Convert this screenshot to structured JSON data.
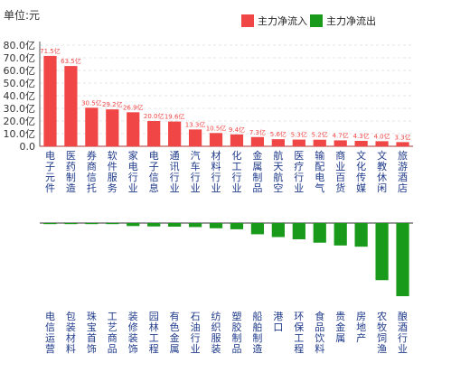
{
  "unit_label": "单位:元",
  "legend": [
    {
      "label": "主力净流入",
      "color": "#f04646"
    },
    {
      "label": "主力净流出",
      "color": "#1a9a1a"
    }
  ],
  "chart_data": [
    {
      "type": "bar",
      "title": "",
      "series": [
        {
          "name": "主力净流入",
          "color": "#f04646",
          "values": [
            71.5,
            63.5,
            30.5,
            29.2,
            26.9,
            20.0,
            19.6,
            13.3,
            10.5,
            9.4,
            7.3,
            5.6,
            5.3,
            5.2,
            4.7,
            4.3,
            4.0,
            3.3
          ]
        }
      ],
      "value_labels": [
        "71.5亿",
        "63.5亿",
        "30.5亿",
        "29.2亿",
        "26.9亿",
        "20.0亿",
        "19.6亿",
        "13.3亿",
        "10.5亿",
        "9.4亿",
        "7.3亿",
        "5.6亿",
        "5.3亿",
        "5.2亿",
        "4.7亿",
        "4.3亿",
        "4.0亿",
        "3.3亿"
      ],
      "categories": [
        "电子元件",
        "医药制造",
        "券商信托",
        "软件服务",
        "家电行业",
        "电子信息",
        "通讯行业",
        "汽车行业",
        "材料行业",
        "化工行业",
        "金属制品",
        "航天航空",
        "医疗行业",
        "输配电气",
        "商业百货",
        "文化传媒",
        "文教休闲",
        "旅游酒店"
      ],
      "yticks": [
        "80.0亿",
        "70.0亿",
        "60.0亿",
        "50.0亿",
        "40.0亿",
        "30.0亿",
        "20.0亿",
        "10.0亿",
        "0.0"
      ],
      "ylim": [
        0,
        80
      ],
      "grid": true
    },
    {
      "type": "bar",
      "title": "",
      "series": [
        {
          "name": "主力净流出",
          "color": "#1a9a1a",
          "values": [
            -0.3,
            -0.3,
            -0.3,
            -0.4,
            -1.5,
            -1.7,
            -1.8,
            -2.0,
            -2.6,
            -3.1,
            -5.6,
            -7.0,
            -8.1,
            -9.8,
            -11.2,
            -11.8,
            -28.5,
            -36.5
          ]
        }
      ],
      "categories": [
        "电信运营",
        "包装材料",
        "珠宝首饰",
        "工艺商品",
        "装修装饰",
        "园林工程",
        "有色金属",
        "石油行业",
        "纺织服装",
        "塑胶制品",
        "船舶制造",
        "港口",
        "环保工程",
        "食品饮料",
        "贵金属",
        "房地产",
        "农牧饲渔",
        "酿酒行业"
      ]
    }
  ]
}
